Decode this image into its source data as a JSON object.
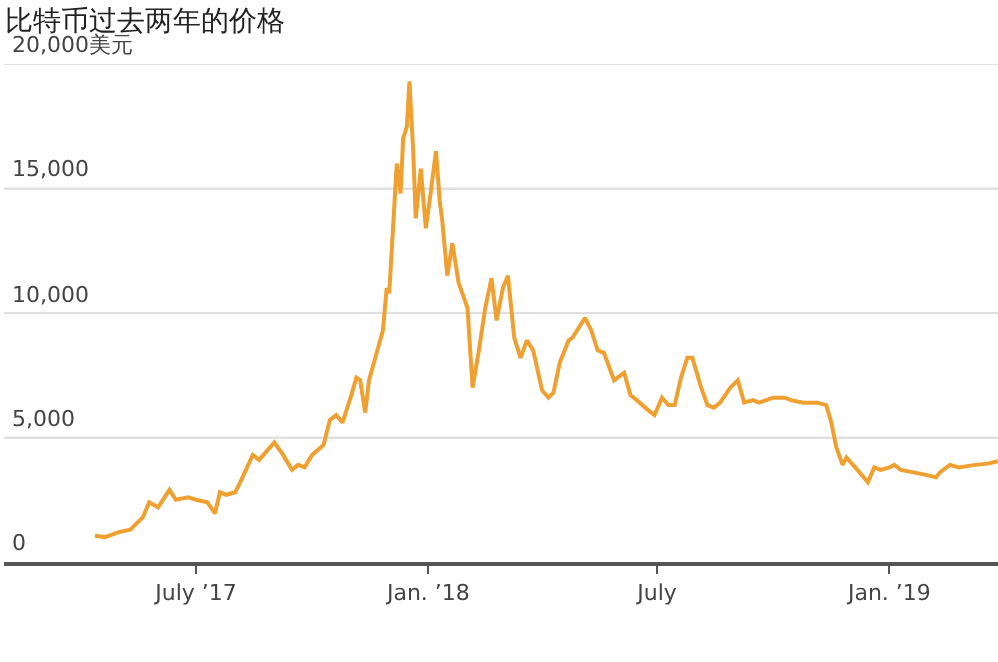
{
  "chart_data": {
    "type": "line",
    "title": "比特币过去两年的价格",
    "x": [
      "2017-04-12",
      "2017-04-20",
      "2017-05-01",
      "2017-05-10",
      "2017-05-20",
      "2017-05-25",
      "2017-06-01",
      "2017-06-10",
      "2017-06-15",
      "2017-06-25",
      "2017-07-01",
      "2017-07-10",
      "2017-07-16",
      "2017-07-20",
      "2017-07-25",
      "2017-08-01",
      "2017-08-05",
      "2017-08-15",
      "2017-08-20",
      "2017-09-01",
      "2017-09-08",
      "2017-09-15",
      "2017-09-20",
      "2017-09-25",
      "2017-10-01",
      "2017-10-10",
      "2017-10-15",
      "2017-10-20",
      "2017-10-25",
      "2017-11-01",
      "2017-11-05",
      "2017-11-08",
      "2017-11-12",
      "2017-11-15",
      "2017-11-20",
      "2017-11-26",
      "2017-11-29",
      "2017-12-01",
      "2017-12-07",
      "2017-12-10",
      "2017-12-12",
      "2017-12-15",
      "2017-12-17",
      "2017-12-20",
      "2017-12-22",
      "2017-12-26",
      "2017-12-30",
      "2018-01-03",
      "2018-01-07",
      "2018-01-10",
      "2018-01-12",
      "2018-01-16",
      "2018-01-20",
      "2018-01-25",
      "2018-02-01",
      "2018-02-05",
      "2018-02-10",
      "2018-02-15",
      "2018-02-20",
      "2018-02-24",
      "2018-03-01",
      "2018-03-05",
      "2018-03-10",
      "2018-03-15",
      "2018-03-20",
      "2018-03-25",
      "2018-04-01",
      "2018-04-06",
      "2018-04-10",
      "2018-04-15",
      "2018-04-22",
      "2018-04-25",
      "2018-05-05",
      "2018-05-10",
      "2018-05-15",
      "2018-05-20",
      "2018-05-28",
      "2018-06-05",
      "2018-06-10",
      "2018-06-15",
      "2018-06-24",
      "2018-06-29",
      "2018-07-05",
      "2018-07-10",
      "2018-07-15",
      "2018-07-20",
      "2018-07-25",
      "2018-07-29",
      "2018-08-05",
      "2018-08-10",
      "2018-08-15",
      "2018-08-20",
      "2018-08-28",
      "2018-09-03",
      "2018-09-08",
      "2018-09-15",
      "2018-09-20",
      "2018-10-01",
      "2018-10-10",
      "2018-10-15",
      "2018-10-25",
      "2018-11-05",
      "2018-11-12",
      "2018-11-16",
      "2018-11-20",
      "2018-11-25",
      "2018-11-28",
      "2018-12-05",
      "2018-12-10",
      "2018-12-15",
      "2018-12-20",
      "2018-12-25",
      "2019-01-01",
      "2019-01-05",
      "2019-01-10",
      "2019-01-20",
      "2019-01-30",
      "2019-02-07",
      "2019-02-10",
      "2019-02-18",
      "2019-02-25",
      "2019-03-10",
      "2019-03-20",
      "2019-03-28"
    ],
    "series": [
      {
        "color": "#f0a030",
        "values": [
          1050,
          1000,
          1200,
          1300,
          1800,
          2400,
          2200,
          2900,
          2500,
          2600,
          2500,
          2400,
          1950,
          2800,
          2700,
          2800,
          3200,
          4300,
          4100,
          4800,
          4300,
          3700,
          3900,
          3800,
          4300,
          4700,
          5700,
          5900,
          5600,
          6700,
          7400,
          7300,
          6000,
          7300,
          8200,
          9300,
          11000,
          10800,
          16000,
          14800,
          17000,
          17500,
          19300,
          16500,
          13800,
          15800,
          13400,
          14900,
          16500,
          14500,
          13700,
          11500,
          12800,
          11200,
          10200,
          7000,
          8500,
          10200,
          11400,
          9700,
          11000,
          11500,
          9000,
          8200,
          8900,
          8500,
          6900,
          6600,
          6800,
          8000,
          8900,
          9000,
          9800,
          9300,
          8500,
          8400,
          7300,
          7600,
          6700,
          6500,
          6100,
          5900,
          6600,
          6300,
          6300,
          7400,
          8200,
          8200,
          7000,
          6300,
          6200,
          6400,
          7000,
          7300,
          6400,
          6500,
          6400,
          6600,
          6600,
          6500,
          6400,
          6400,
          6300,
          5600,
          4600,
          3900,
          4200,
          3800,
          3500,
          3200,
          3800,
          3700,
          3800,
          3900,
          3700,
          3600,
          3500,
          3400,
          3600,
          3900,
          3800,
          3900,
          3950,
          4050
        ]
      }
    ],
    "xlim": [
      "2017-01-30",
      "2019-03-28"
    ],
    "xticks": [
      {
        "value": "2017-07-01",
        "label": "July ’17"
      },
      {
        "value": "2018-01-01",
        "label": "Jan. ’18"
      },
      {
        "value": "2018-07-01",
        "label": "July"
      },
      {
        "value": "2019-01-01",
        "label": "Jan. ’19"
      }
    ],
    "ylim": [
      0,
      20000
    ],
    "yticks": [
      {
        "value": 0,
        "label": "0"
      },
      {
        "value": 5000,
        "label": "5,000"
      },
      {
        "value": 10000,
        "label": "10,000"
      },
      {
        "value": 15000,
        "label": "15,000"
      },
      {
        "value": 20000,
        "label": "20,000美元"
      }
    ],
    "grid": "y",
    "marker": "none",
    "line_style": "solid"
  }
}
